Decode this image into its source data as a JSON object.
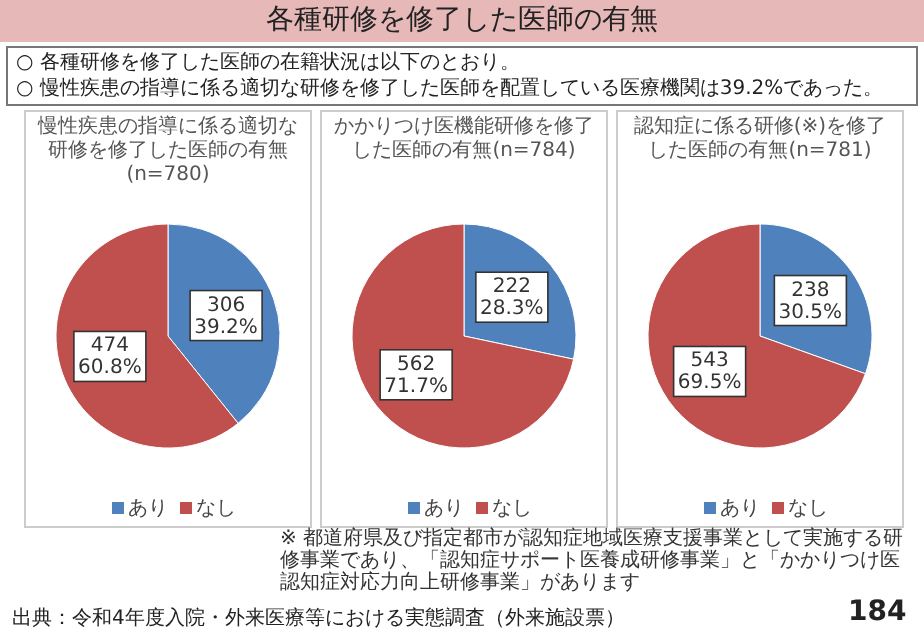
{
  "chart_data": [
    {
      "type": "pie",
      "title": "慢性疾患の指導に係る適切な研修を修了した医師の有無(n=780)",
      "categories": [
        "あり",
        "なし"
      ],
      "values": [
        306,
        474
      ],
      "colors": [
        "#4f81bd",
        "#c0504d"
      ],
      "value_labels": [
        "306\n39.2%",
        "474\n60.8%"
      ],
      "legend": "bottom",
      "annotations": [
        "各種研修を修了した医師の有無",
        "○ 各種研修を修了した医師の在籍状況は以下のとおり。",
        "○ 慢性疾患の指導に係る適切な研修を修了した医師を配置している医療機関は39.2%であった。"
      ]
    },
    {
      "type": "pie",
      "title": "かかりつけ医機能研修を修了した医師の有無(n=784)",
      "categories": [
        "あり",
        "なし"
      ],
      "values": [
        222,
        562
      ],
      "colors": [
        "#4f81bd",
        "#c0504d"
      ],
      "value_labels": [
        "222\n28.3%",
        "562\n71.7%"
      ],
      "legend": "bottom"
    },
    {
      "type": "pie",
      "title": "認知症に係る研修(※)を修了した医師の有無(n=781)",
      "categories": [
        "あり",
        "なし"
      ],
      "values": [
        238,
        543
      ],
      "colors": [
        "#4f81bd",
        "#c0504d"
      ],
      "value_labels": [
        "238\n30.5%",
        "543\n69.5%"
      ],
      "legend": "bottom",
      "annotations": [
        "※ 都道府県及び指定都市が認知症地域医療支援事業として実施する研修事業であり、「認知症サポート医養成研修事業」と「かかりつけ医認知症対応力向上研修事業」があります",
        "出典：令和4年度入院・外来医療等における実態調査（外来施設票）",
        "184"
      ]
    }
  ]
}
